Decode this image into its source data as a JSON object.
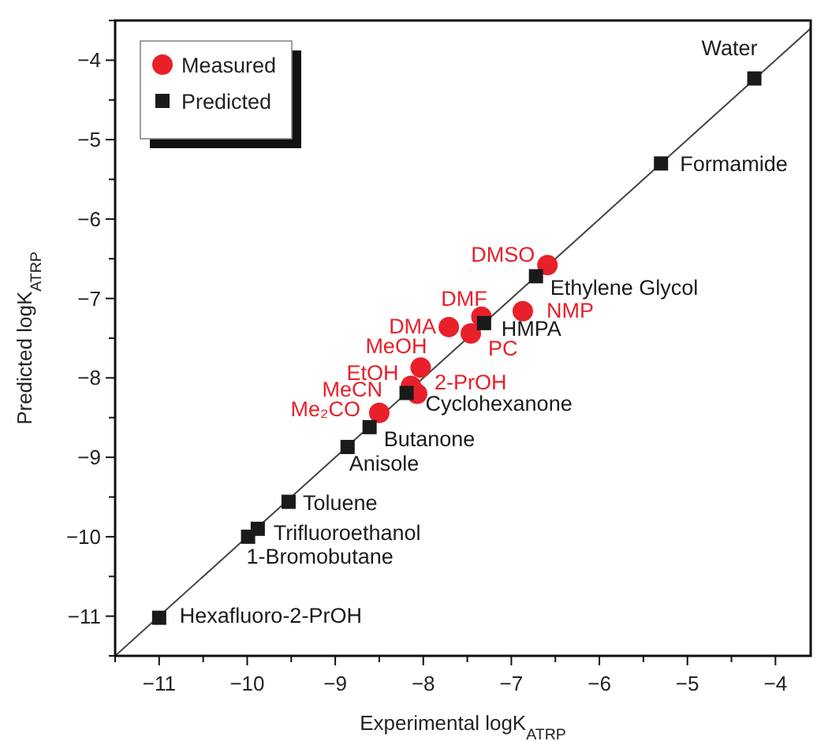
{
  "chart_data": {
    "type": "scatter",
    "xlabel": "Experimental logK$_{ATRP}$",
    "ylabel": "Predicted logK$_{ATRP}$",
    "xlim": [
      -11.5,
      -3.6
    ],
    "ylim": [
      -11.5,
      -3.5
    ],
    "xticks": [
      {
        "value": -11.5,
        "label": null
      },
      -11,
      {
        "value": -10.5,
        "label": null
      },
      -10,
      {
        "value": -9.5,
        "label": null
      },
      -9,
      {
        "value": -8.5,
        "label": null
      },
      -8,
      {
        "value": -7.5,
        "label": null
      },
      -7,
      {
        "value": -6.5,
        "label": null
      },
      -6,
      {
        "value": -5.5,
        "label": null
      },
      -5,
      {
        "value": -4.5,
        "label": null
      },
      -4
    ],
    "yticks": [
      {
        "value": -11.5,
        "label": null
      },
      -11,
      {
        "value": -10.5,
        "label": null
      },
      -10,
      {
        "value": -9.5,
        "label": null
      },
      -9,
      {
        "value": -8.5,
        "label": null
      },
      -8,
      {
        "value": -7.5,
        "label": null
      },
      -7,
      {
        "value": -6.5,
        "label": null
      },
      -6,
      {
        "value": -5.5,
        "label": null
      },
      -5,
      {
        "value": -4.5,
        "label": null
      },
      -4,
      {
        "value": -3.5,
        "label": null
      }
    ],
    "legend": "top left",
    "grid": false,
    "series": [
      {
        "type": "line",
        "color": "#444444",
        "marker": "none",
        "x": [
          -11.5,
          -3.6
        ],
        "values": [
          -11.5,
          -3.6
        ]
      },
      {
        "name": "Measured",
        "color": "#e8202a",
        "marker": "circle",
        "x": [
          -6.59,
          -7.34,
          -6.87,
          -7.71,
          -7.46,
          -8.03,
          -8.14,
          -8.07,
          -8.5
        ],
        "values": [
          -6.58,
          -7.23,
          -7.16,
          -7.36,
          -7.44,
          -7.87,
          -8.1,
          -8.2,
          -8.44
        ]
      },
      {
        "name": "Predicted",
        "color": "#1a1a1a",
        "marker": "square",
        "x": [
          -4.24,
          -5.3,
          -6.72,
          -7.31,
          -8.19,
          -8.61,
          -8.86,
          -9.53,
          -9.88,
          -9.99,
          -11
        ],
        "values": [
          -4.23,
          -5.3,
          -6.72,
          -7.31,
          -8.19,
          -8.62,
          -8.87,
          -9.56,
          -9.9,
          -10.0,
          -11.02
        ]
      }
    ],
    "annotations": [
      {
        "text": "Water",
        "x": -4.24,
        "y": -4.23
      },
      {
        "text": "Formamide",
        "x": -5.3,
        "y": -5.3
      },
      {
        "text": "Ethylene Glycol",
        "x": -6.72,
        "y": -6.72
      },
      {
        "text": "HMPA",
        "x": -7.31,
        "y": -7.31
      },
      {
        "text": "DMSO",
        "x": -6.59,
        "y": -6.58
      },
      {
        "text": "DMF",
        "x": -7.34,
        "y": -7.23
      },
      {
        "text": "NMP",
        "x": -6.87,
        "y": -7.16
      },
      {
        "text": "DMA",
        "x": -7.71,
        "y": -7.36
      },
      {
        "text": "PC",
        "x": -7.46,
        "y": -7.44
      },
      {
        "text": "MeOH",
        "x": -8.03,
        "y": -7.87
      },
      {
        "text": "EtOH",
        "x": -8.03,
        "y": -7.87
      },
      {
        "text": "MeCN",
        "x": -8.14,
        "y": -8.1
      },
      {
        "text": "2-PrOH",
        "x": -8.07,
        "y": -8.2
      },
      {
        "text": "Me₂CO",
        "x": -8.5,
        "y": -8.44
      },
      {
        "text": "Cyclohexanone",
        "x": -8.19,
        "y": -8.19
      },
      {
        "text": "Butanone",
        "x": -8.61,
        "y": -8.62
      },
      {
        "text": "Anisole",
        "x": -8.86,
        "y": -8.87
      },
      {
        "text": "Toluene",
        "x": -9.53,
        "y": -9.56
      },
      {
        "text": "Trifluoroethanol",
        "x": -9.88,
        "y": -9.9
      },
      {
        "text": "1-Bromobutane",
        "x": -9.99,
        "y": -10.0
      },
      {
        "text": "Hexafluoro-2-PrOH",
        "x": -11,
        "y": -11.02
      }
    ]
  }
}
